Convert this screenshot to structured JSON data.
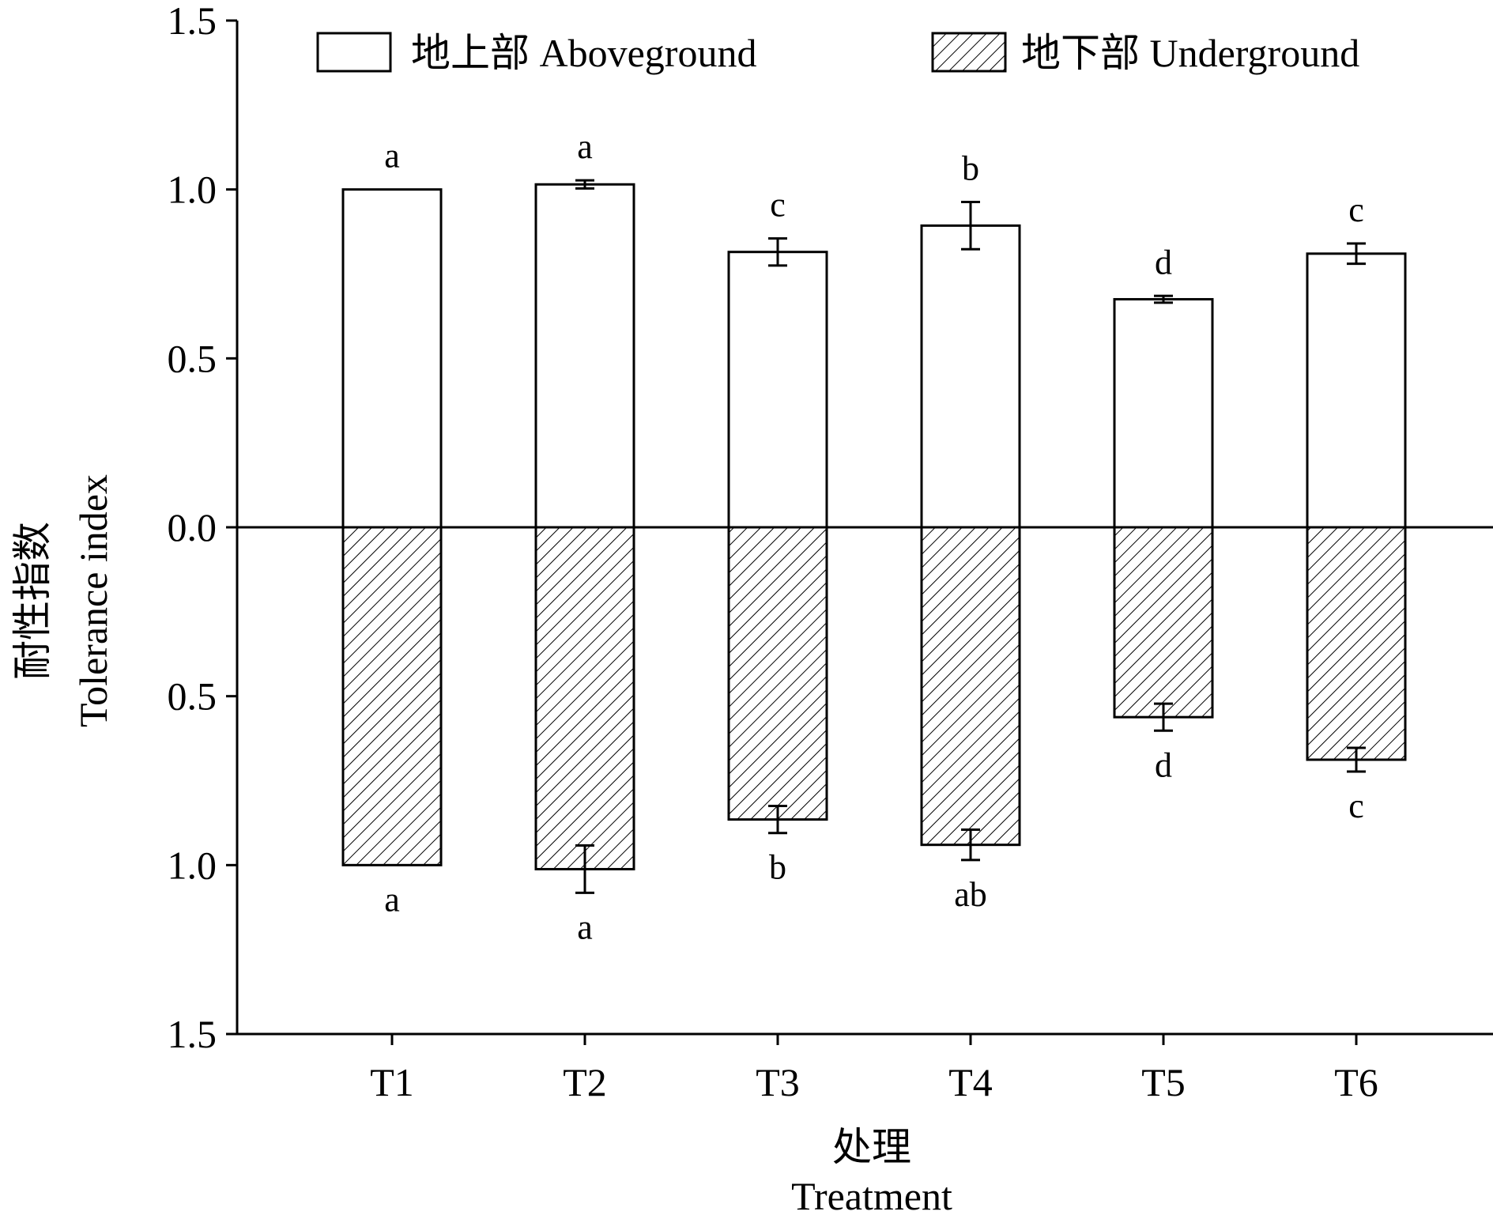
{
  "chart_data": {
    "type": "bar",
    "title": "",
    "categories": [
      "T1",
      "T2",
      "T3",
      "T4",
      "T5",
      "T6"
    ],
    "xlabel_cn": "处理",
    "xlabel_en": "Treatment",
    "ylabel_cn": "耐性指数",
    "ylabel_en": "Tolerance index",
    "ylim": [
      -1.5,
      1.5
    ],
    "yticks": [
      1.5,
      1.0,
      0.5,
      0.0,
      -0.5,
      -1.0,
      -1.5
    ],
    "ytick_labels": [
      "1.5",
      "1.0",
      "0.5",
      "0.0",
      "0.5",
      "1.0",
      "1.5"
    ],
    "baseline": 0,
    "series": [
      {
        "name": "地上部 Aboveground",
        "fill": "none",
        "values": [
          1.0,
          1.015,
          0.815,
          0.893,
          0.675,
          0.81
        ],
        "errors": [
          0.0,
          0.012,
          0.04,
          0.07,
          0.01,
          0.03
        ],
        "significance": [
          "a",
          "a",
          "c",
          "b",
          "d",
          "c"
        ]
      },
      {
        "name": "地下部 Underground",
        "fill": "hatched",
        "values": [
          -1.0,
          -1.012,
          -0.865,
          -0.94,
          -0.562,
          -0.688
        ],
        "errors": [
          0.0,
          0.07,
          0.04,
          0.045,
          0.04,
          0.035
        ],
        "significance": [
          "a",
          "a",
          "b",
          "ab",
          "d",
          "c"
        ]
      }
    ],
    "legend_position": "top",
    "grid": false,
    "colors": {
      "outline": "#000000",
      "background": "#ffffff",
      "hatch": "#000000"
    }
  }
}
